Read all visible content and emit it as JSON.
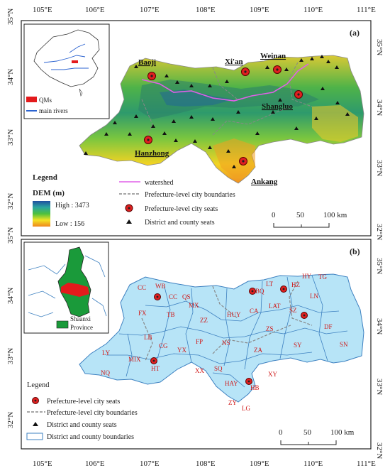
{
  "colors": {
    "dem_high": "#1d5fa8",
    "dem_low": "#ee8d1f",
    "county_fill": "#b7e4f7",
    "watershed": "#e060e8",
    "boundary": "#888888",
    "seat": "#e02020",
    "county_border": "#3d80c0",
    "qm_red": "#e31a1c",
    "shaanxi_green": "#1a9a3a"
  },
  "axes": {
    "top_lon": [
      "105°E",
      "106°E",
      "107°E",
      "108°E",
      "109°E",
      "110°E",
      "111°E"
    ],
    "bottom_lon": [
      "105°E",
      "106°E",
      "107°E",
      "108°E",
      "109°E",
      "110°E",
      "111°E"
    ],
    "lat_a": [
      "35°N",
      "34°N",
      "33°N",
      "32°N"
    ],
    "lat_b": [
      "35°N",
      "34°N",
      "33°N",
      "32°N"
    ]
  },
  "panel_a": {
    "tag": "(a)",
    "cities": {
      "baoji": "Baoji",
      "xian": "Xi'an",
      "weinan": "Weinan",
      "shangluo": "Shangluo",
      "hanzhong": "Hanzhong",
      "ankang": "Ankang"
    },
    "inset_legend": {
      "qms": "QMs",
      "rivers": "main rivers"
    },
    "legend": {
      "title": "Legend",
      "dem": "DEM (m)",
      "high": "High : 3473",
      "low": "Low : 156",
      "watershed": "watershed",
      "boundaries": "Prefecture-level city boundaries",
      "seats": "Prefecture-level city seats",
      "county_seats": "District and county seats"
    },
    "scale": {
      "s0": "0",
      "s50": "50",
      "s100": "100 km"
    }
  },
  "panel_b": {
    "tag": "(b)",
    "inset_legend": {
      "shaanxi": "Shaanxi",
      "province": "Province"
    },
    "counties": [
      "CC",
      "WB",
      "CC",
      "QS",
      "MX",
      "FX",
      "TB",
      "ZZ",
      "HUY",
      "CA",
      "LT",
      "HZ",
      "HY",
      "TG",
      "LN",
      "LAT",
      "SZ",
      "DF",
      "SN",
      "SY",
      "ZS",
      "ZA",
      "NS",
      "FP",
      "YX",
      "CG",
      "LB",
      "LY",
      "MIX",
      "NQ",
      "HT",
      "XX",
      "SQ",
      "HAY",
      "HB",
      "XY",
      "ZY",
      "LG",
      "BQ"
    ],
    "legend": {
      "title": "Legend",
      "seats": "Prefecture-level city seats",
      "boundaries": "Prefecture-level city boundaries",
      "county_seats": "District and county seats",
      "county_bounds": "District and county boundaries"
    },
    "scale": {
      "s0": "0",
      "s50": "50",
      "s100": "100 km"
    }
  }
}
